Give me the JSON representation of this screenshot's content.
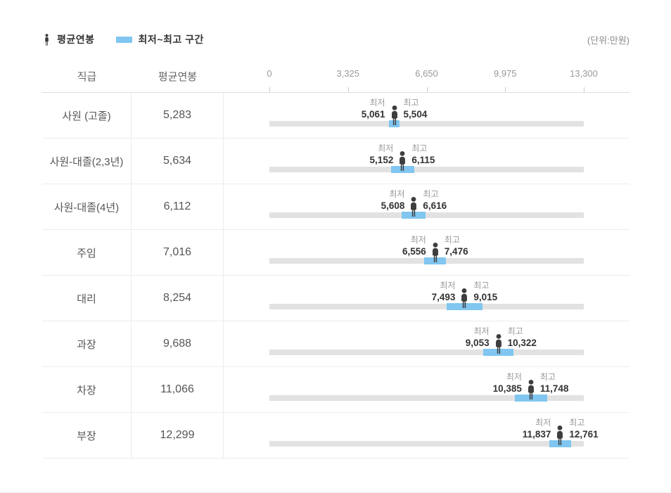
{
  "unit_note": "(단위:만원)",
  "legend": {
    "avg_label": "평균연봉",
    "range_label": "최저~최고 구간"
  },
  "columns": {
    "position": "직급",
    "avg_salary": "평균연봉"
  },
  "labels": {
    "min": "최저",
    "max": "최고"
  },
  "colors": {
    "range_blue": "#80C6F0",
    "track_gray": "#E2E2E2",
    "person_dark": "#3D3D3D"
  },
  "chart_data": {
    "type": "bar",
    "orientation": "horizontal",
    "title": "",
    "unit": "(단위:만원)",
    "categories": [
      "사원 (고졸)",
      "사원-대졸(2,3년)",
      "사원-대졸(4년)",
      "주임",
      "대리",
      "과장",
      "차장",
      "부장"
    ],
    "series": [
      {
        "name": "평균연봉",
        "values": [
          5283,
          5634,
          6112,
          7016,
          8254,
          9688,
          11066,
          12299
        ]
      },
      {
        "name": "최저",
        "values": [
          5061,
          5152,
          5608,
          6556,
          7493,
          9053,
          10385,
          11837
        ]
      },
      {
        "name": "최고",
        "values": [
          5504,
          6115,
          6616,
          7476,
          9015,
          10322,
          11748,
          12761
        ]
      }
    ],
    "xlim": [
      0,
      13300
    ],
    "x_ticks": [
      0,
      3325,
      6650,
      9975,
      13300
    ],
    "x_tick_labels": [
      "0",
      "3,325",
      "6,650",
      "9,975",
      "13,300"
    ],
    "legend_position": "top",
    "grid": false
  }
}
